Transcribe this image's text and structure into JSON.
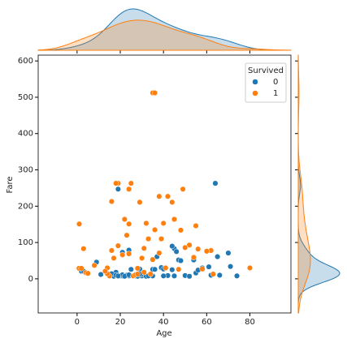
{
  "chart_data": {
    "type": "scatter",
    "xlabel": "Age",
    "ylabel": "Fare",
    "legend_title": "Survived",
    "legend": "upper right",
    "xlim": [
      -18,
      99
    ],
    "ylim": [
      -94,
      616
    ],
    "xticks": [
      0,
      20,
      40,
      60,
      80
    ],
    "yticks": [
      0,
      100,
      200,
      300,
      400,
      500,
      600
    ],
    "marginal": "kde",
    "series": [
      {
        "name": "0",
        "color": "#1f77b4",
        "x": [
          22,
          38,
          35,
          54,
          2,
          27,
          14,
          20,
          39,
          55,
          31,
          35,
          34,
          28,
          21,
          28,
          19,
          40,
          66,
          42,
          21,
          18,
          40,
          27,
          3,
          19,
          30,
          21,
          26,
          24,
          45,
          33,
          29,
          47,
          50,
          61,
          28,
          37,
          36,
          24,
          25,
          44,
          30,
          23,
          17,
          71,
          65,
          70,
          58,
          19,
          32,
          16,
          45,
          62,
          26,
          29,
          33,
          48,
          52,
          9,
          11,
          22,
          18,
          24,
          46,
          64,
          44,
          56,
          19,
          74
        ],
        "y": [
          7,
          71,
          8,
          52,
          21,
          11,
          30,
          8,
          31,
          16,
          18,
          26,
          13,
          7,
          8,
          14,
          263,
          27,
          10,
          9,
          73,
          18,
          8,
          8,
          21,
          247,
          8,
          11,
          8,
          79,
          83,
          8,
          27,
          52,
          9,
          33,
          7,
          61,
          26,
          8,
          26,
          90,
          13,
          10,
          7,
          34,
          61,
          71,
          30,
          7,
          7,
          14,
          8,
          10,
          8,
          13,
          8,
          50,
          7,
          46,
          12,
          7,
          10,
          11,
          75,
          263,
          25,
          24,
          8,
          8
        ]
      },
      {
        "name": "1",
        "color": "#ff7f0e",
        "x": [
          38,
          26,
          35,
          27,
          14,
          4,
          58,
          55,
          1,
          0.9,
          15,
          34,
          28,
          38,
          19,
          35,
          36,
          17,
          24,
          36,
          22,
          49,
          16,
          45,
          29,
          31,
          48,
          19,
          33,
          5,
          3,
          24,
          62,
          80,
          42,
          52,
          18,
          40,
          30,
          50,
          23,
          14,
          21,
          2,
          44,
          60,
          39,
          25,
          56,
          32,
          16,
          63,
          54,
          47,
          13,
          41,
          31,
          28,
          8,
          24
        ],
        "y": [
          71,
          8,
          53,
          11,
          30,
          17,
          27,
          146,
          151,
          29,
          8,
          13,
          13,
          227,
          263,
          512,
          512,
          57,
          247,
          135,
          164,
          247,
          78,
          164,
          211,
          84,
          134,
          91,
          110,
          15,
          83,
          151,
          78,
          30,
          227,
          93,
          263,
          153,
          57,
          86,
          120,
          14,
          66,
          29,
          211,
          76,
          110,
          263,
          82,
          153,
          213,
          13,
          59,
          26,
          21,
          30,
          18,
          29,
          37,
          69
        ]
      }
    ]
  }
}
